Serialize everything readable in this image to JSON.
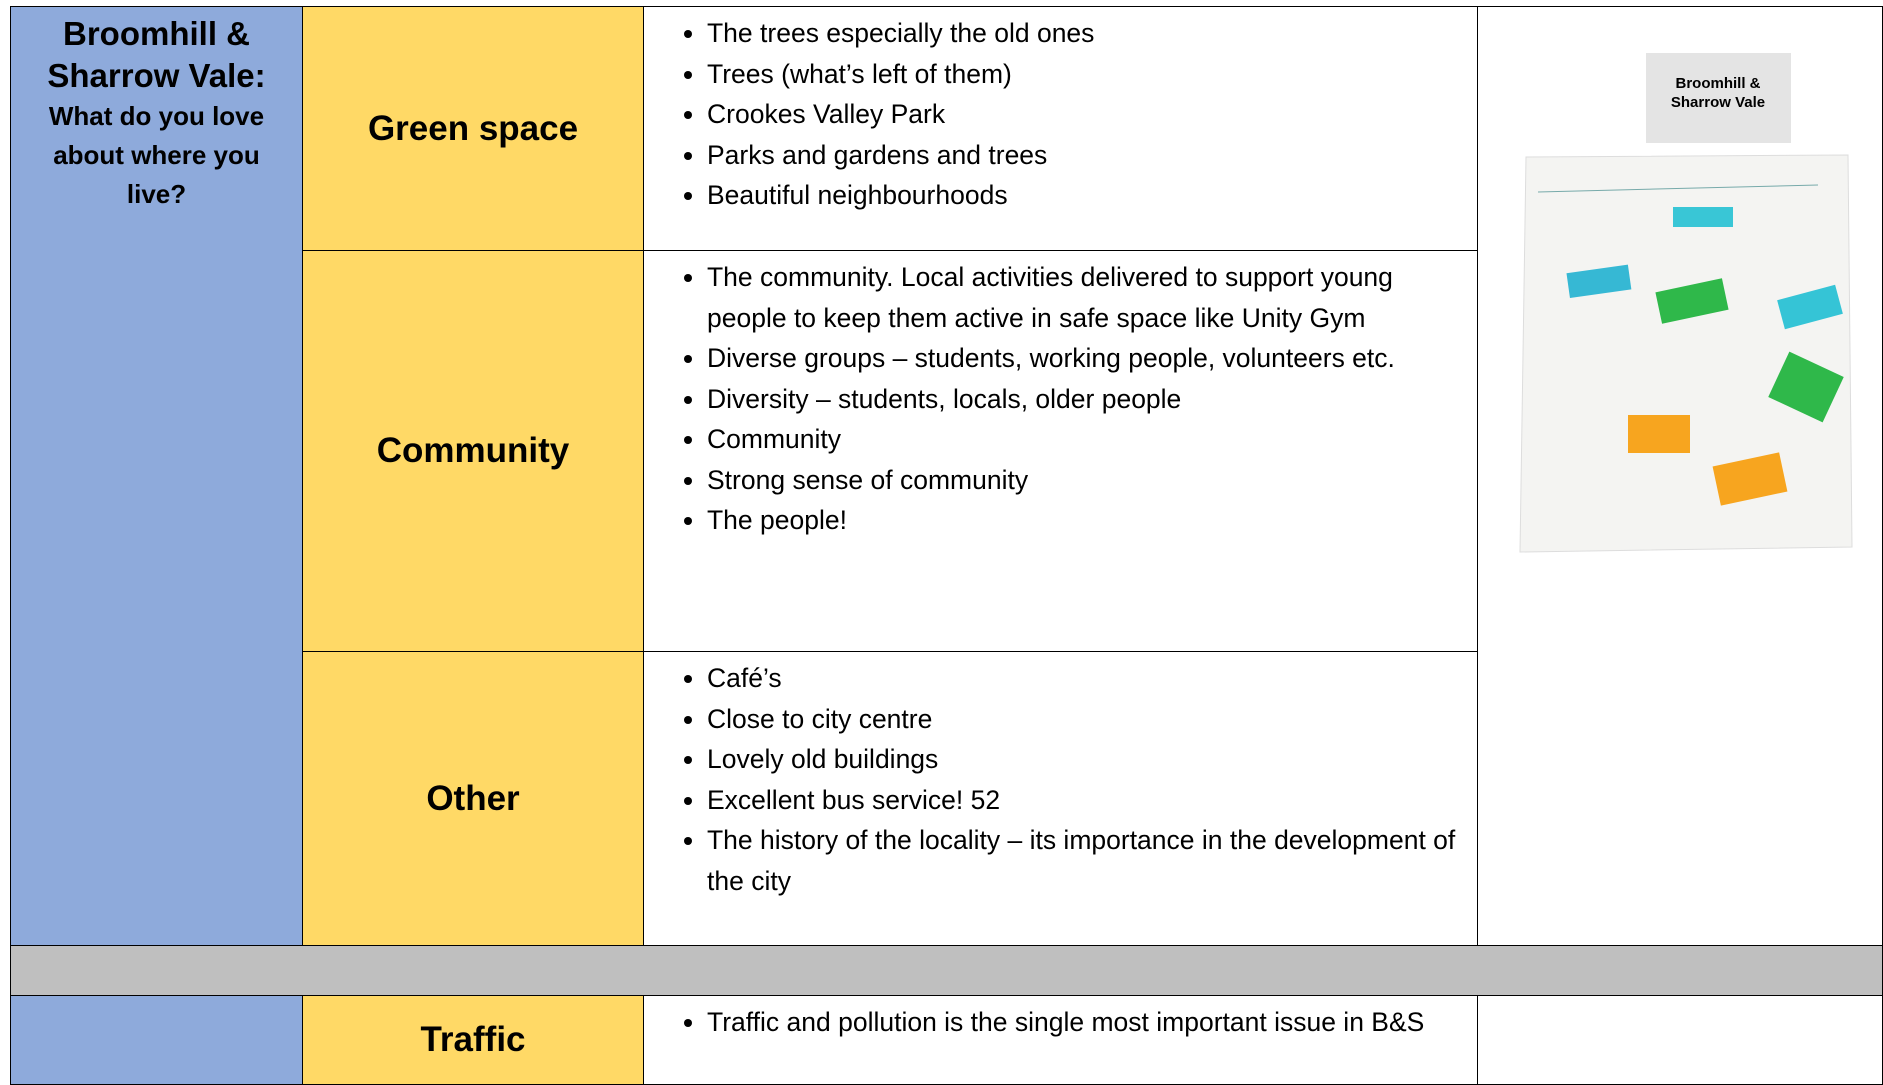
{
  "header": {
    "title": "Broomhill & Sharrow Vale:",
    "question": "What do you love about where you live?"
  },
  "sections": [
    {
      "category": "Green space",
      "items": [
        "The trees especially the old ones",
        "Trees (what’s left of them)",
        "Crookes Valley Park",
        "Parks and gardens and trees",
        "Beautiful neighbourhoods"
      ]
    },
    {
      "category": "Community",
      "items": [
        "The community. Local activities delivered to support young people to keep them active in safe space like Unity Gym",
        "Diverse groups – students, working people, volunteers etc.",
        "Diversity – students, locals, older people",
        "Community",
        "Strong sense of community",
        "The people!"
      ]
    },
    {
      "category": "Other",
      "items": [
        "Café’s",
        "Close to city centre",
        "Lovely old buildings",
        "Excellent bus service! 52",
        "The history of the locality – its importance in the development of the city"
      ]
    }
  ],
  "next_section": {
    "category": "Traffic",
    "items": [
      "Traffic and pollution is the single most important issue in B&S"
    ]
  },
  "photo": {
    "card_label": "Broomhill & Sharrow Vale"
  }
}
